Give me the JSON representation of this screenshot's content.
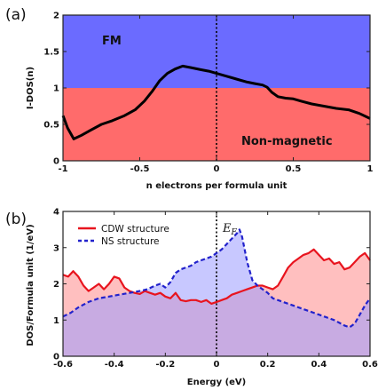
{
  "chart_data": [
    {
      "type": "line",
      "panel_label": "(a)",
      "xlabel": "n electrons per formula unit",
      "ylabel": "I-DOS(n)",
      "xlim": [
        -1,
        1
      ],
      "ylim": [
        0,
        2
      ],
      "xticks": [
        "-1",
        "-0.5",
        "0",
        "0.5",
        "1"
      ],
      "xtick_values": [
        -1,
        -0.5,
        0,
        0.5,
        1
      ],
      "yticks": [
        "0",
        "0.5",
        "1",
        "1.5",
        "2"
      ],
      "ytick_values": [
        0,
        0.5,
        1,
        1.5,
        2
      ],
      "regions": [
        {
          "label": "FM",
          "from": 1,
          "to": 2,
          "color": "#6b6bff"
        },
        {
          "label": "Non-magnetic",
          "from": 0,
          "to": 1,
          "color": "#ff6b6b"
        }
      ],
      "vline_x": 0,
      "series": [
        {
          "color": "#000000",
          "x": [
            -1,
            -0.97,
            -0.93,
            -0.88,
            -0.82,
            -0.75,
            -0.68,
            -0.6,
            -0.53,
            -0.47,
            -0.42,
            -0.37,
            -0.32,
            -0.27,
            -0.22,
            -0.17,
            -0.1,
            -0.05,
            0,
            0.05,
            0.1,
            0.15,
            0.2,
            0.25,
            0.3,
            0.33,
            0.36,
            0.4,
            0.45,
            0.5,
            0.55,
            0.62,
            0.7,
            0.78,
            0.86,
            0.93,
            1
          ],
          "y": [
            0.62,
            0.45,
            0.3,
            0.35,
            0.42,
            0.5,
            0.55,
            0.62,
            0.7,
            0.82,
            0.95,
            1.1,
            1.2,
            1.26,
            1.3,
            1.28,
            1.25,
            1.23,
            1.2,
            1.17,
            1.14,
            1.11,
            1.08,
            1.06,
            1.04,
            1.01,
            0.94,
            0.88,
            0.86,
            0.85,
            0.82,
            0.78,
            0.75,
            0.72,
            0.7,
            0.65,
            0.58
          ]
        }
      ]
    },
    {
      "type": "area",
      "panel_label": "(b)",
      "xlabel": "Energy (eV)",
      "ylabel": "DOS/Formula unit (1/eV)",
      "xlim": [
        -0.6,
        0.6
      ],
      "ylim": [
        0,
        4
      ],
      "xticks": [
        "-0.6",
        "-0.4",
        "-0.2",
        "0",
        "0.2",
        "0.4",
        "0.6"
      ],
      "xtick_values": [
        -0.6,
        -0.4,
        -0.2,
        0,
        0.2,
        0.4,
        0.6
      ],
      "yticks": [
        "0",
        "1",
        "2",
        "3",
        "4"
      ],
      "ytick_values": [
        0,
        1,
        2,
        3,
        4
      ],
      "legend_position": "top-left",
      "annotation": {
        "text": "E",
        "subscript": "F",
        "x": 0.05,
        "y": 3.55
      },
      "vline_x": 0,
      "series": [
        {
          "name": "CDW structure",
          "color": "#e8141e",
          "fill": "#ff8a8a",
          "dash": "solid",
          "x": [
            -0.6,
            -0.58,
            -0.56,
            -0.54,
            -0.52,
            -0.5,
            -0.48,
            -0.46,
            -0.44,
            -0.42,
            -0.4,
            -0.38,
            -0.36,
            -0.34,
            -0.32,
            -0.3,
            -0.28,
            -0.26,
            -0.24,
            -0.22,
            -0.2,
            -0.18,
            -0.16,
            -0.14,
            -0.12,
            -0.1,
            -0.08,
            -0.06,
            -0.04,
            -0.02,
            0,
            0.02,
            0.04,
            0.06,
            0.08,
            0.1,
            0.12,
            0.14,
            0.16,
            0.18,
            0.2,
            0.22,
            0.24,
            0.26,
            0.28,
            0.3,
            0.32,
            0.34,
            0.36,
            0.38,
            0.4,
            0.42,
            0.44,
            0.46,
            0.48,
            0.5,
            0.52,
            0.54,
            0.56,
            0.58,
            0.6
          ],
          "y": [
            2.25,
            2.2,
            2.35,
            2.2,
            1.95,
            1.8,
            1.9,
            2.0,
            1.85,
            2.0,
            2.2,
            2.15,
            1.9,
            1.8,
            1.75,
            1.72,
            1.8,
            1.75,
            1.7,
            1.75,
            1.65,
            1.6,
            1.75,
            1.55,
            1.52,
            1.55,
            1.55,
            1.5,
            1.55,
            1.45,
            1.5,
            1.55,
            1.6,
            1.7,
            1.75,
            1.8,
            1.85,
            1.9,
            1.95,
            1.95,
            1.9,
            1.85,
            1.95,
            2.2,
            2.45,
            2.6,
            2.7,
            2.8,
            2.85,
            2.95,
            2.8,
            2.65,
            2.7,
            2.55,
            2.6,
            2.4,
            2.45,
            2.6,
            2.75,
            2.85,
            2.65
          ]
        },
        {
          "name": "NS structure",
          "color": "#2222cc",
          "fill": "#9a9aff",
          "dash": "dashed",
          "x": [
            -0.6,
            -0.57,
            -0.54,
            -0.5,
            -0.46,
            -0.42,
            -0.38,
            -0.34,
            -0.3,
            -0.27,
            -0.24,
            -0.22,
            -0.2,
            -0.18,
            -0.16,
            -0.14,
            -0.12,
            -0.1,
            -0.08,
            -0.06,
            -0.04,
            -0.02,
            0,
            0.02,
            0.04,
            0.06,
            0.08,
            0.09,
            0.1,
            0.12,
            0.14,
            0.16,
            0.18,
            0.2,
            0.22,
            0.26,
            0.3,
            0.34,
            0.38,
            0.42,
            0.46,
            0.5,
            0.52,
            0.54,
            0.56,
            0.58,
            0.6
          ],
          "y": [
            1.1,
            1.2,
            1.35,
            1.5,
            1.6,
            1.65,
            1.7,
            1.75,
            1.8,
            1.85,
            1.95,
            2.0,
            1.9,
            2.05,
            2.3,
            2.4,
            2.45,
            2.5,
            2.6,
            2.65,
            2.7,
            2.75,
            2.85,
            2.95,
            3.1,
            3.25,
            3.4,
            3.5,
            3.3,
            2.6,
            2.1,
            1.95,
            1.85,
            1.75,
            1.6,
            1.5,
            1.4,
            1.3,
            1.2,
            1.1,
            1.0,
            0.85,
            0.8,
            0.9,
            1.15,
            1.4,
            1.6
          ]
        }
      ]
    }
  ]
}
